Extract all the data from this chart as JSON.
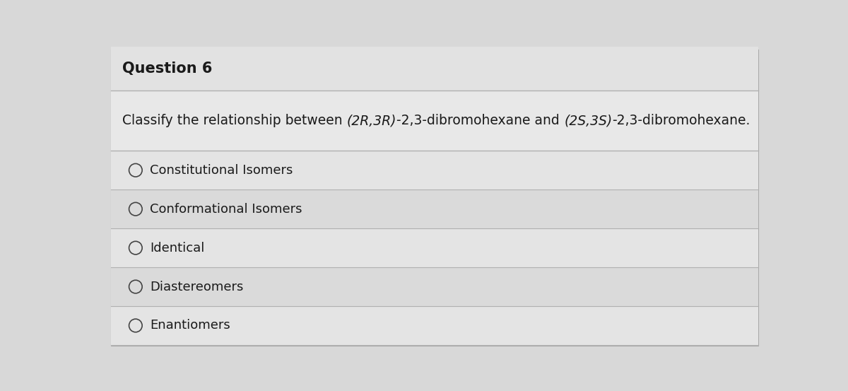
{
  "title": "Question 6",
  "options": [
    "Constitutional Isomers",
    "Conformational Isomers",
    "Identical",
    "Diastereomers",
    "Enantiomers"
  ],
  "bg_color": "#d8d8d8",
  "panel_color": "#e8e8e8",
  "title_bg": "#e0e0e0",
  "option_bg_even": "#e4e4e4",
  "option_bg_odd": "#dadada",
  "text_color": "#1a1a1a",
  "line_color": "#b0b0b0",
  "circle_color": "#444444",
  "title_fontsize": 15,
  "question_fontsize": 13.5,
  "option_fontsize": 13
}
